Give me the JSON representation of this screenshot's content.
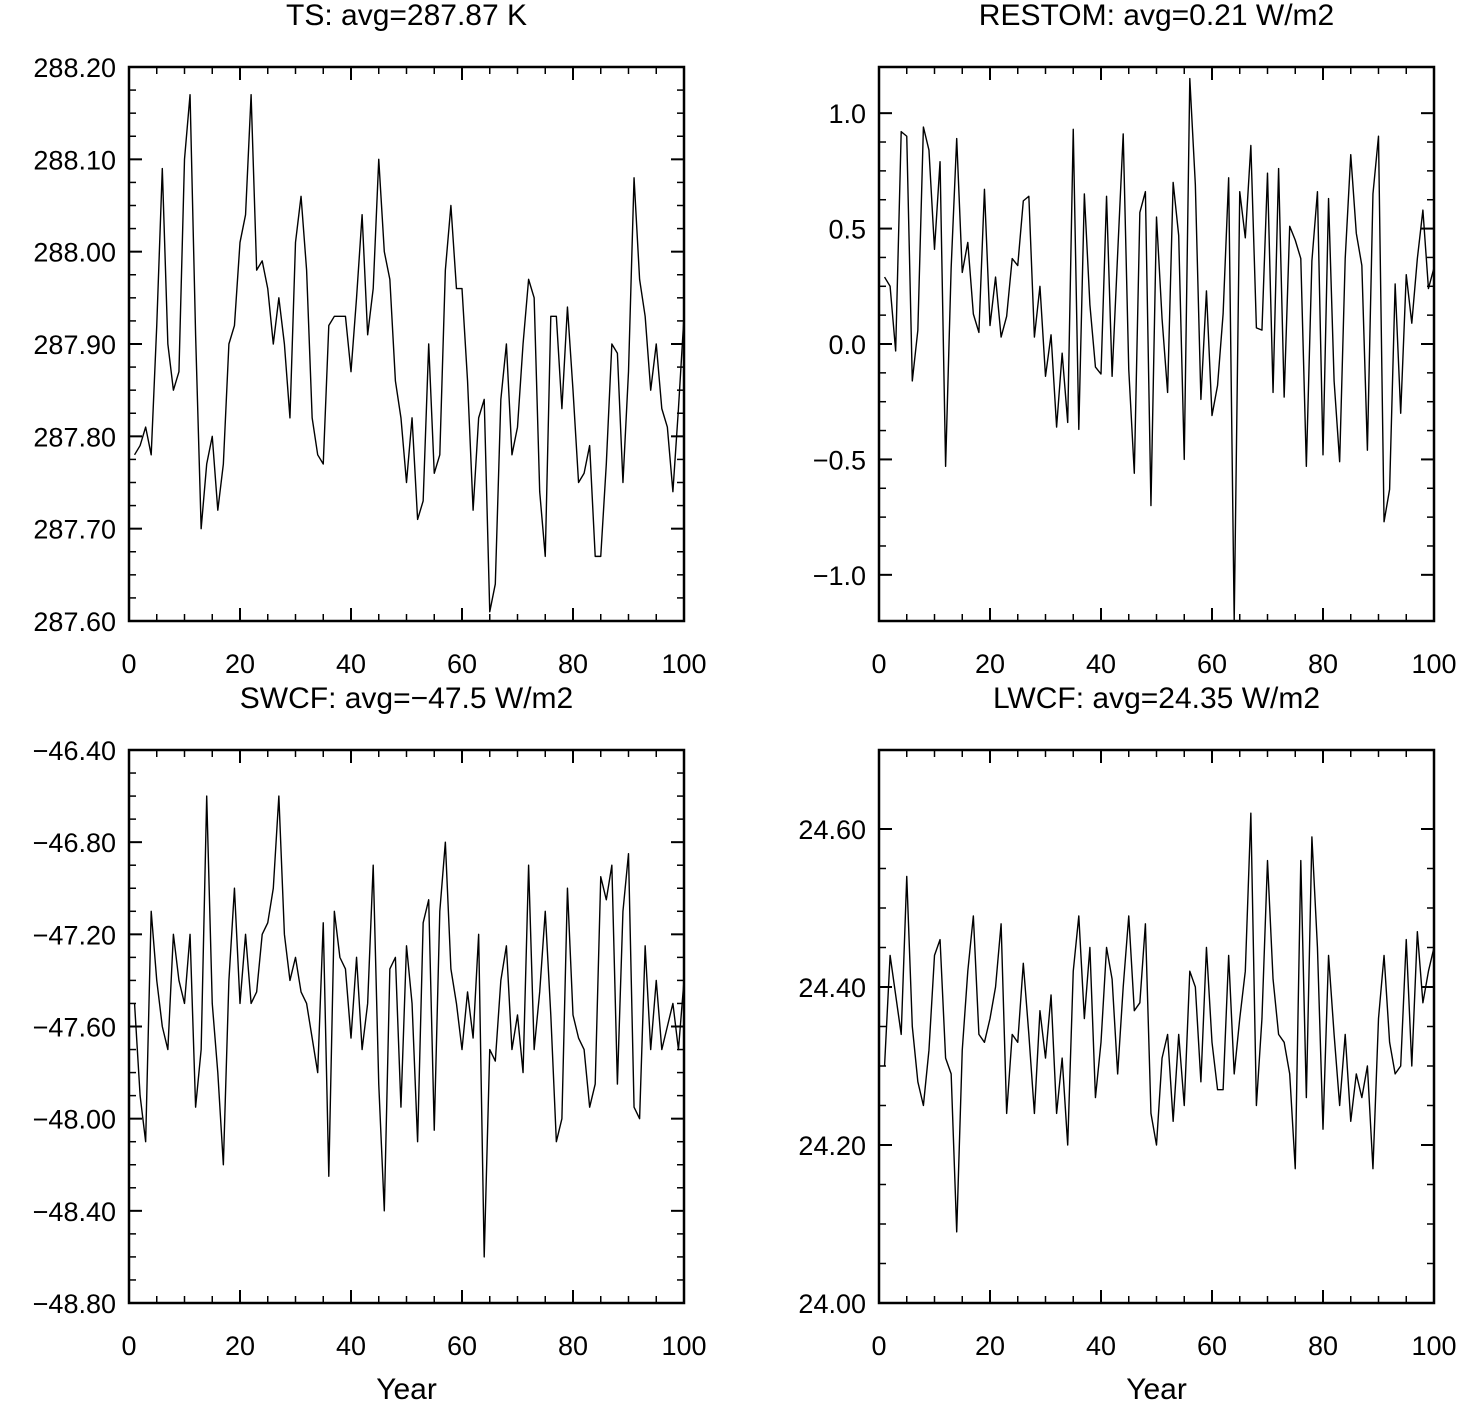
{
  "chart_data": [
    {
      "type": "line",
      "title": "TS: avg=287.87 K",
      "color": "#000000",
      "x": [
        1,
        2,
        3,
        4,
        5,
        6,
        7,
        8,
        9,
        10,
        11,
        12,
        13,
        14,
        15,
        16,
        17,
        18,
        19,
        20,
        21,
        22,
        23,
        24,
        25,
        26,
        27,
        28,
        29,
        30,
        31,
        32,
        33,
        34,
        35,
        36,
        37,
        38,
        39,
        40,
        41,
        42,
        43,
        44,
        45,
        46,
        47,
        48,
        49,
        50,
        51,
        52,
        53,
        54,
        55,
        56,
        57,
        58,
        59,
        60,
        61,
        62,
        63,
        64,
        65,
        66,
        67,
        68,
        69,
        70,
        71,
        72,
        73,
        74,
        75,
        76,
        77,
        78,
        79,
        80,
        81,
        82,
        83,
        84,
        85,
        86,
        87,
        88,
        89,
        90,
        91,
        92,
        93,
        94,
        95,
        96,
        97,
        98,
        99,
        100
      ],
      "values": [
        287.78,
        287.79,
        287.81,
        287.78,
        287.92,
        288.09,
        287.9,
        287.85,
        287.87,
        288.1,
        288.17,
        287.91,
        287.7,
        287.77,
        287.8,
        287.72,
        287.77,
        287.9,
        287.92,
        288.01,
        288.04,
        288.17,
        287.98,
        287.99,
        287.96,
        287.9,
        287.95,
        287.9,
        287.82,
        288.01,
        288.06,
        287.98,
        287.82,
        287.78,
        287.77,
        287.92,
        287.93,
        287.93,
        287.93,
        287.87,
        287.95,
        288.04,
        287.91,
        287.96,
        288.1,
        288.0,
        287.97,
        287.86,
        287.82,
        287.75,
        287.82,
        287.71,
        287.73,
        287.9,
        287.76,
        287.78,
        287.98,
        288.05,
        287.96,
        287.96,
        287.86,
        287.72,
        287.82,
        287.84,
        287.61,
        287.64,
        287.84,
        287.9,
        287.78,
        287.81,
        287.9,
        287.97,
        287.95,
        287.74,
        287.67,
        287.93,
        287.93,
        287.83,
        287.94,
        287.85,
        287.75,
        287.76,
        287.79,
        287.67,
        287.67,
        287.77,
        287.9,
        287.89,
        287.75,
        287.87,
        288.08,
        287.97,
        287.93,
        287.85,
        287.9,
        287.83,
        287.81,
        287.74,
        287.83,
        287.93
      ],
      "xlim": [
        0,
        100
      ],
      "xticks": [
        0,
        20,
        40,
        60,
        80,
        100
      ],
      "ylim": [
        287.6,
        288.2
      ],
      "yticks": [
        {
          "value": 287.6,
          "label": "287.60"
        },
        {
          "value": 287.7,
          "label": "287.70"
        },
        {
          "value": 287.8,
          "label": "287.80"
        },
        {
          "value": 287.9,
          "label": "287.90"
        },
        {
          "value": 288.0,
          "label": "288.00"
        },
        {
          "value": 288.1,
          "label": "288.10"
        },
        {
          "value": 288.2,
          "label": "288.20"
        }
      ]
    },
    {
      "type": "line",
      "title": "RESTOM: avg=0.21 W/m2",
      "color": "#000000",
      "x": [
        1,
        2,
        3,
        4,
        5,
        6,
        7,
        8,
        9,
        10,
        11,
        12,
        13,
        14,
        15,
        16,
        17,
        18,
        19,
        20,
        21,
        22,
        23,
        24,
        25,
        26,
        27,
        28,
        29,
        30,
        31,
        32,
        33,
        34,
        35,
        36,
        37,
        38,
        39,
        40,
        41,
        42,
        43,
        44,
        45,
        46,
        47,
        48,
        49,
        50,
        51,
        52,
        53,
        54,
        55,
        56,
        57,
        58,
        59,
        60,
        61,
        62,
        63,
        64,
        65,
        66,
        67,
        68,
        69,
        70,
        71,
        72,
        73,
        74,
        75,
        76,
        77,
        78,
        79,
        80,
        81,
        82,
        83,
        84,
        85,
        86,
        87,
        88,
        89,
        90,
        91,
        92,
        93,
        94,
        95,
        96,
        97,
        98,
        99,
        100
      ],
      "values": [
        0.29,
        0.25,
        -0.03,
        0.92,
        0.9,
        -0.16,
        0.06,
        0.94,
        0.84,
        0.41,
        0.79,
        -0.53,
        0.33,
        0.89,
        0.31,
        0.44,
        0.13,
        0.05,
        0.67,
        0.08,
        0.29,
        0.03,
        0.12,
        0.37,
        0.34,
        0.62,
        0.64,
        0.03,
        0.25,
        -0.14,
        0.04,
        -0.36,
        -0.04,
        -0.34,
        0.93,
        -0.37,
        0.65,
        0.17,
        -0.1,
        -0.13,
        0.64,
        -0.14,
        0.39,
        0.91,
        -0.11,
        -0.56,
        0.57,
        0.66,
        -0.7,
        0.55,
        0.11,
        -0.21,
        0.7,
        0.47,
        -0.5,
        1.15,
        0.69,
        -0.24,
        0.23,
        -0.31,
        -0.18,
        0.13,
        0.72,
        -1.2,
        0.66,
        0.46,
        0.86,
        0.07,
        0.06,
        0.74,
        -0.21,
        0.76,
        -0.23,
        0.51,
        0.45,
        0.37,
        -0.53,
        0.36,
        0.66,
        -0.48,
        0.63,
        -0.16,
        -0.51,
        0.37,
        0.82,
        0.48,
        0.34,
        -0.46,
        0.65,
        0.9,
        -0.77,
        -0.63,
        0.26,
        -0.3,
        0.3,
        0.09,
        0.37,
        0.58,
        0.24,
        0.33
      ],
      "xlim": [
        0,
        100
      ],
      "xticks": [
        0,
        20,
        40,
        60,
        80,
        100
      ],
      "ylim": [
        -1.2,
        1.2
      ],
      "yticks": [
        {
          "value": -1.0,
          "label": "−1.0"
        },
        {
          "value": -0.5,
          "label": "−0.5"
        },
        {
          "value": 0.0,
          "label": "0.0"
        },
        {
          "value": 0.5,
          "label": "0.5"
        },
        {
          "value": 1.0,
          "label": "1.0"
        }
      ]
    },
    {
      "type": "line",
      "title": "SWCF: avg=−47.5 W/m2",
      "x_label": "Year",
      "color": "#000000",
      "x": [
        1,
        2,
        3,
        4,
        5,
        6,
        7,
        8,
        9,
        10,
        11,
        12,
        13,
        14,
        15,
        16,
        17,
        18,
        19,
        20,
        21,
        22,
        23,
        24,
        25,
        26,
        27,
        28,
        29,
        30,
        31,
        32,
        33,
        34,
        35,
        36,
        37,
        38,
        39,
        40,
        41,
        42,
        43,
        44,
        45,
        46,
        47,
        48,
        49,
        50,
        51,
        52,
        53,
        54,
        55,
        56,
        57,
        58,
        59,
        60,
        61,
        62,
        63,
        64,
        65,
        66,
        67,
        68,
        69,
        70,
        71,
        72,
        73,
        74,
        75,
        76,
        77,
        78,
        79,
        80,
        81,
        82,
        83,
        84,
        85,
        86,
        87,
        88,
        89,
        90,
        91,
        92,
        93,
        94,
        95,
        96,
        97,
        98,
        99,
        100
      ],
      "values": [
        -47.5,
        -47.9,
        -48.1,
        -47.1,
        -47.4,
        -47.6,
        -47.7,
        -47.2,
        -47.4,
        -47.5,
        -47.2,
        -47.95,
        -47.7,
        -46.6,
        -47.5,
        -47.8,
        -48.2,
        -47.4,
        -47.0,
        -47.5,
        -47.2,
        -47.5,
        -47.45,
        -47.2,
        -47.15,
        -47.0,
        -46.6,
        -47.2,
        -47.4,
        -47.3,
        -47.45,
        -47.5,
        -47.65,
        -47.8,
        -47.15,
        -48.25,
        -47.1,
        -47.3,
        -47.35,
        -47.65,
        -47.3,
        -47.7,
        -47.5,
        -46.9,
        -47.85,
        -48.4,
        -47.35,
        -47.3,
        -47.95,
        -47.25,
        -47.5,
        -48.1,
        -47.15,
        -47.05,
        -48.05,
        -47.1,
        -46.8,
        -47.35,
        -47.5,
        -47.7,
        -47.45,
        -47.65,
        -47.2,
        -48.6,
        -47.7,
        -47.75,
        -47.4,
        -47.25,
        -47.7,
        -47.55,
        -47.8,
        -46.9,
        -47.7,
        -47.45,
        -47.1,
        -47.55,
        -48.1,
        -48.0,
        -47.0,
        -47.55,
        -47.65,
        -47.7,
        -47.95,
        -47.85,
        -46.95,
        -47.05,
        -46.9,
        -47.85,
        -47.1,
        -46.85,
        -47.95,
        -48.0,
        -47.25,
        -47.7,
        -47.4,
        -47.7,
        -47.6,
        -47.5,
        -47.7,
        -47.4
      ],
      "xlim": [
        0,
        100
      ],
      "xticks": [
        0,
        20,
        40,
        60,
        80,
        100
      ],
      "ylim": [
        -48.8,
        -46.4
      ],
      "yticks": [
        {
          "value": -48.8,
          "label": "−48.80"
        },
        {
          "value": -48.4,
          "label": "−48.40"
        },
        {
          "value": -48.0,
          "label": "−48.00"
        },
        {
          "value": -47.6,
          "label": "−47.60"
        },
        {
          "value": -47.2,
          "label": "−47.20"
        },
        {
          "value": -46.8,
          "label": "−46.80"
        },
        {
          "value": -46.4,
          "label": "−46.40"
        }
      ]
    },
    {
      "type": "line",
      "title": "LWCF: avg=24.35 W/m2",
      "x_label": "Year",
      "color": "#000000",
      "x": [
        1,
        2,
        3,
        4,
        5,
        6,
        7,
        8,
        9,
        10,
        11,
        12,
        13,
        14,
        15,
        16,
        17,
        18,
        19,
        20,
        21,
        22,
        23,
        24,
        25,
        26,
        27,
        28,
        29,
        30,
        31,
        32,
        33,
        34,
        35,
        36,
        37,
        38,
        39,
        40,
        41,
        42,
        43,
        44,
        45,
        46,
        47,
        48,
        49,
        50,
        51,
        52,
        53,
        54,
        55,
        56,
        57,
        58,
        59,
        60,
        61,
        62,
        63,
        64,
        65,
        66,
        67,
        68,
        69,
        70,
        71,
        72,
        73,
        74,
        75,
        76,
        77,
        78,
        79,
        80,
        81,
        82,
        83,
        84,
        85,
        86,
        87,
        88,
        89,
        90,
        91,
        92,
        93,
        94,
        95,
        96,
        97,
        98,
        99,
        100
      ],
      "values": [
        24.3,
        24.44,
        24.39,
        24.34,
        24.54,
        24.35,
        24.28,
        24.25,
        24.32,
        24.44,
        24.46,
        24.31,
        24.29,
        24.09,
        24.32,
        24.42,
        24.49,
        24.34,
        24.33,
        24.36,
        24.4,
        24.48,
        24.24,
        24.34,
        24.33,
        24.43,
        24.34,
        24.24,
        24.37,
        24.31,
        24.39,
        24.24,
        24.31,
        24.2,
        24.42,
        24.49,
        24.36,
        24.45,
        24.26,
        24.33,
        24.45,
        24.41,
        24.29,
        24.4,
        24.49,
        24.37,
        24.38,
        24.48,
        24.24,
        24.2,
        24.31,
        24.34,
        24.23,
        24.34,
        24.25,
        24.42,
        24.4,
        24.28,
        24.45,
        24.33,
        24.27,
        24.27,
        24.44,
        24.29,
        24.36,
        24.42,
        24.62,
        24.25,
        24.36,
        24.56,
        24.41,
        24.34,
        24.33,
        24.29,
        24.17,
        24.56,
        24.26,
        24.59,
        24.45,
        24.22,
        24.44,
        24.34,
        24.25,
        24.34,
        24.23,
        24.29,
        24.26,
        24.3,
        24.17,
        24.36,
        24.44,
        24.33,
        24.29,
        24.3,
        24.46,
        24.3,
        24.47,
        24.38,
        24.42,
        24.45
      ],
      "xlim": [
        0,
        100
      ],
      "xticks": [
        0,
        20,
        40,
        60,
        80,
        100
      ],
      "ylim": [
        24.0,
        24.7
      ],
      "yticks": [
        {
          "value": 24.0,
          "label": "24.00"
        },
        {
          "value": 24.2,
          "label": "24.20"
        },
        {
          "value": 24.4,
          "label": "24.40"
        },
        {
          "value": 24.6,
          "label": "24.60"
        }
      ]
    }
  ]
}
